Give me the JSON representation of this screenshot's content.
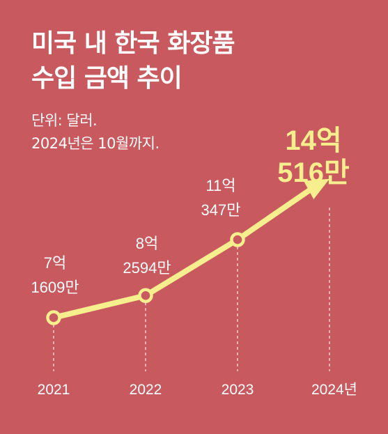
{
  "title_lines": [
    "미국 내 한국 화장품",
    "수입 금액 추이"
  ],
  "note_lines": [
    "단위: 달러.",
    "2024년은 10월까지."
  ],
  "colors": {
    "background": "#c8595e",
    "line": "#f7ee8e",
    "highlight_text": "#f7ee8e",
    "text": "#ffffff"
  },
  "chart_data": {
    "type": "line",
    "categories": [
      "2021",
      "2022",
      "2023",
      "2024년"
    ],
    "values_usd": [
      716090000,
      825940000,
      1103470000,
      1405160000
    ],
    "value_labels": [
      [
        "7억",
        "1609만"
      ],
      [
        "8억",
        "2594만"
      ],
      [
        "11억",
        "347만"
      ],
      [
        "14억",
        "516만"
      ]
    ],
    "highlight_index": 3,
    "last_point_arrow": true,
    "grid": "dashed vertical guides at each category",
    "ylim": [
      0,
      1600000000
    ]
  }
}
